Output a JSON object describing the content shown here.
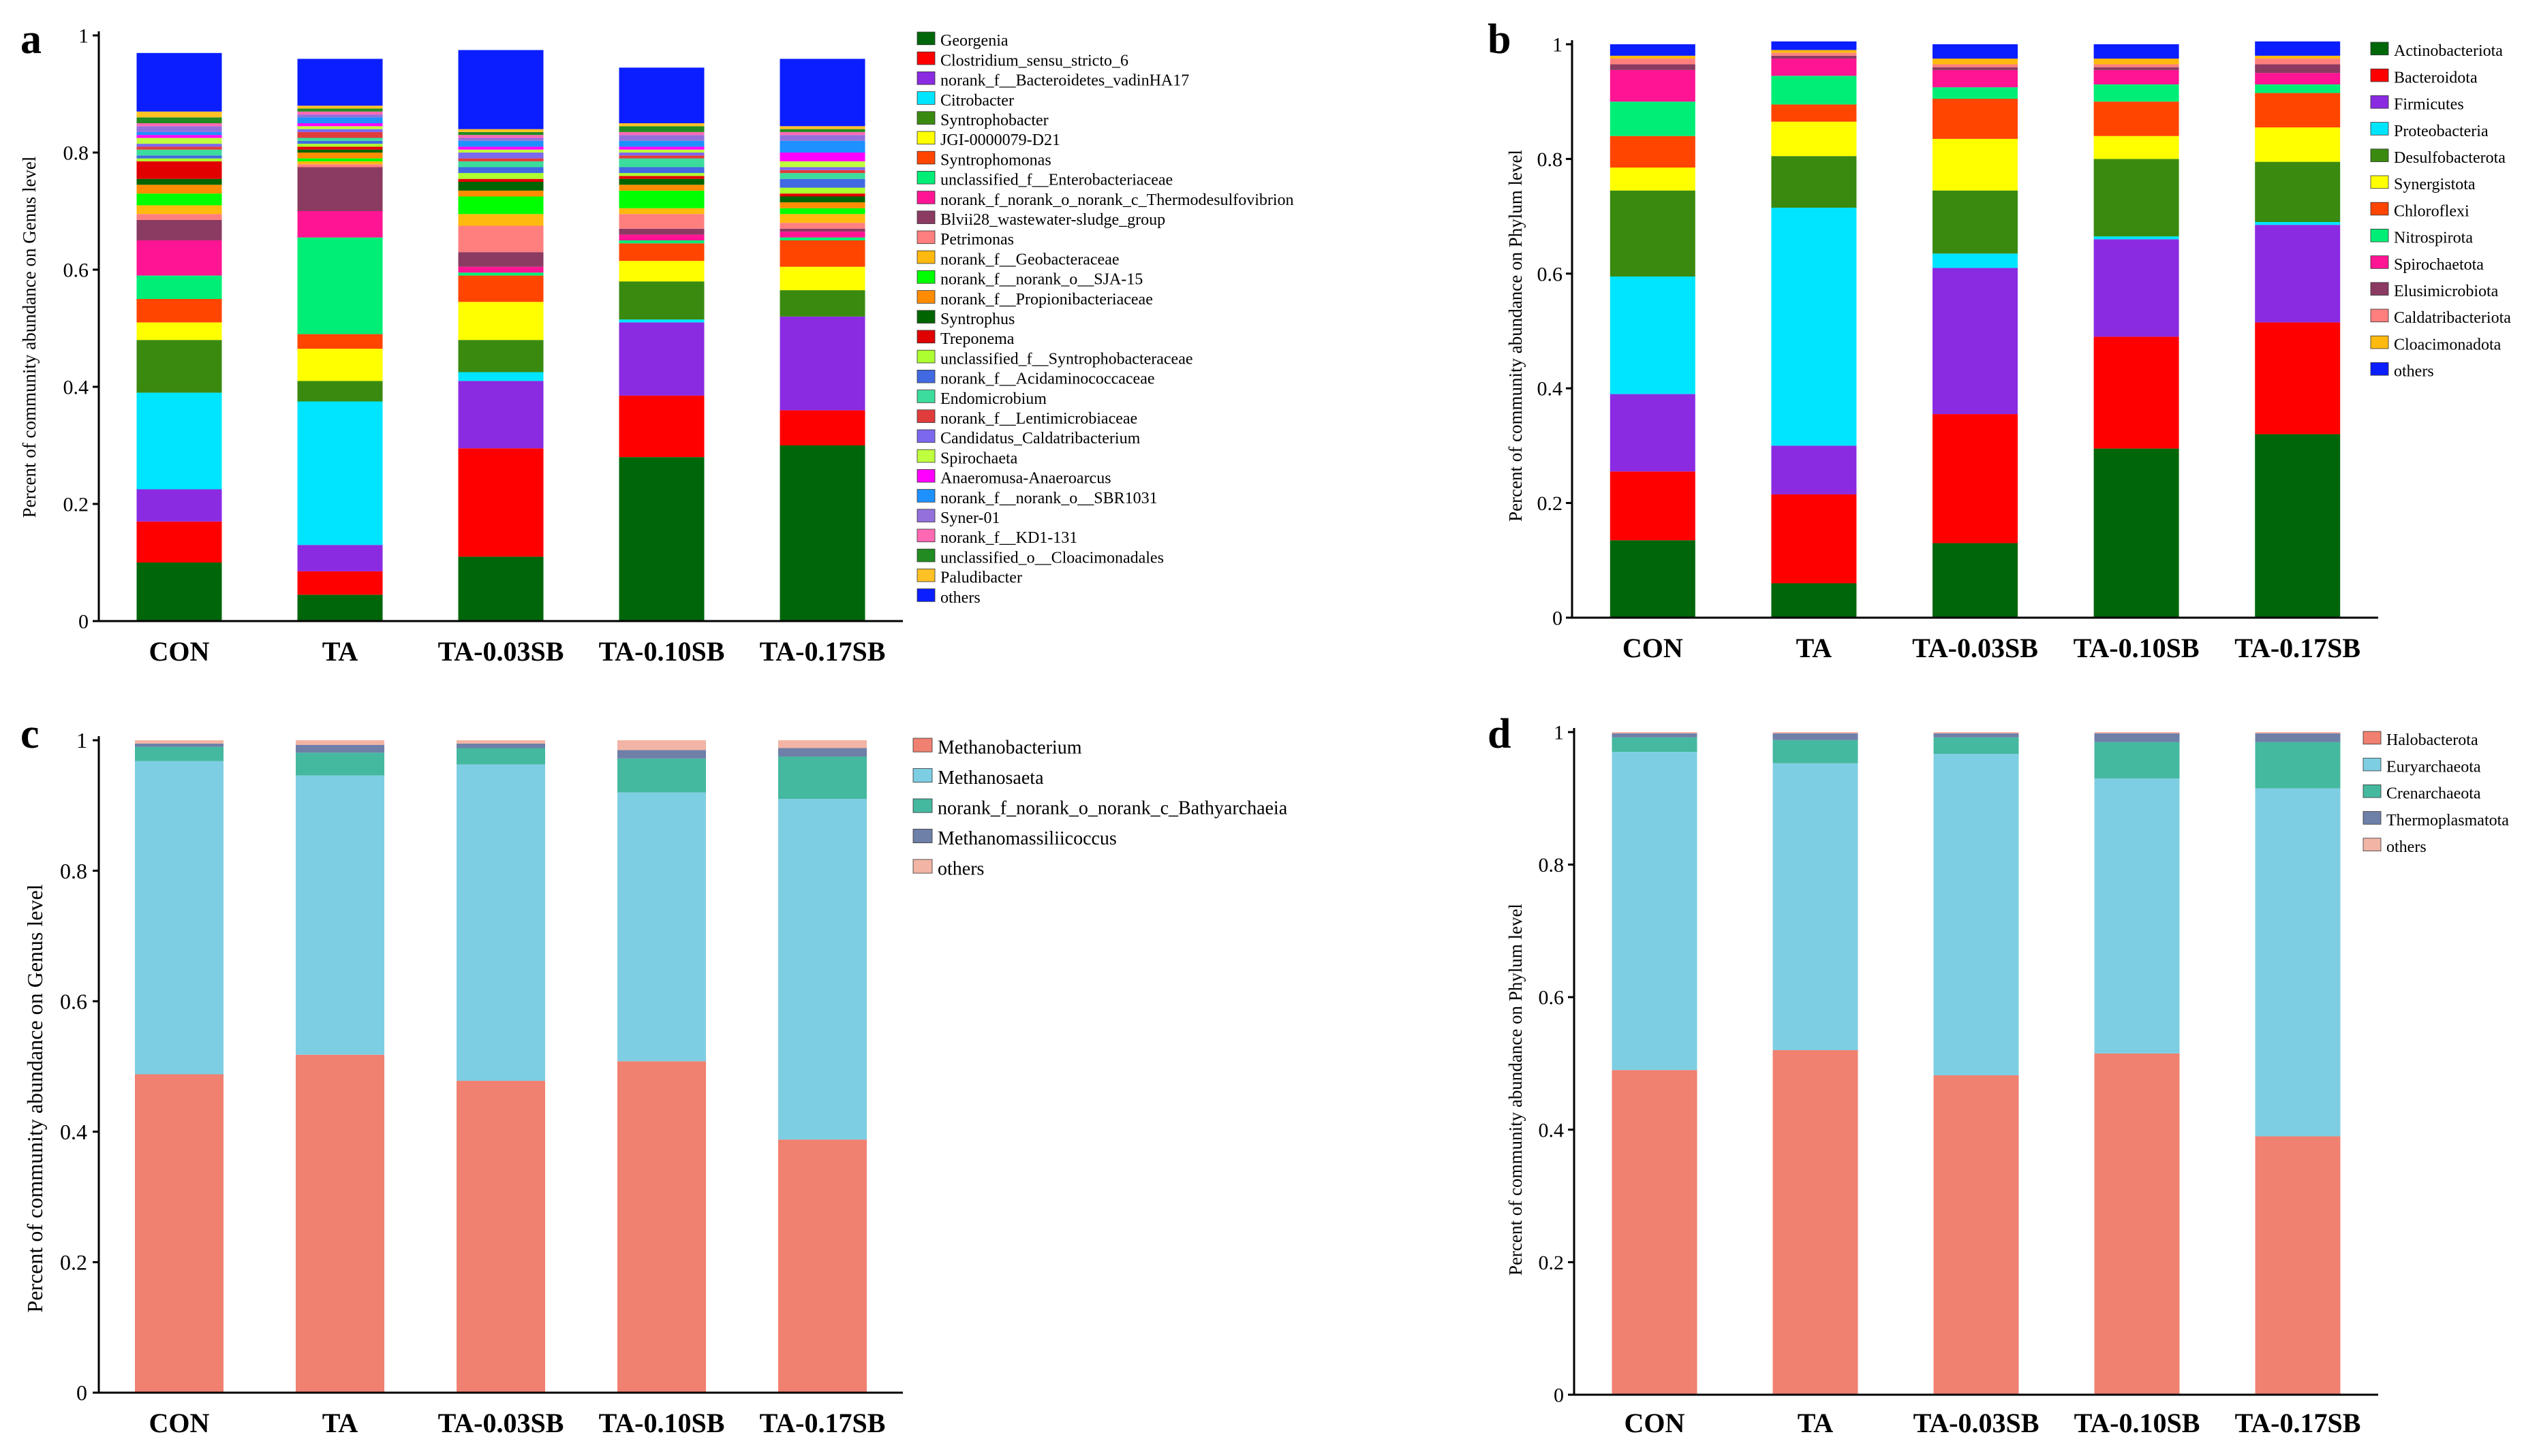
{
  "chart_data": [
    {
      "panel": "a",
      "type": "bar",
      "stacked": true,
      "title": "",
      "xlabel": "",
      "ylabel": "Percent of community abundance on Genus level",
      "ylim": [
        0,
        1
      ],
      "yticks": [
        "0",
        "0.2",
        "0.4",
        "0.6",
        "0.8",
        "1"
      ],
      "categories": [
        "CON",
        "TA",
        "TA-0.03SB",
        "TA-0.10SB",
        "TA-0.17SB"
      ],
      "series": [
        {
          "name": "Georgenia",
          "color": "#00660a",
          "values": [
            0.1,
            0.045,
            0.11,
            0.28,
            0.3
          ]
        },
        {
          "name": "Clostridium_sensu_stricto_6",
          "color": "#ff0000",
          "values": [
            0.07,
            0.04,
            0.185,
            0.105,
            0.06
          ]
        },
        {
          "name": "norank_f__Bacteroidetes_vadinHA17",
          "color": "#8a2be2",
          "values": [
            0.055,
            0.045,
            0.115,
            0.125,
            0.16
          ]
        },
        {
          "name": "Citrobacter",
          "color": "#00e5ff",
          "values": [
            0.165,
            0.245,
            0.015,
            0.005,
            0.0
          ]
        },
        {
          "name": "Syntrophobacter",
          "color": "#3a8a10",
          "values": [
            0.09,
            0.035,
            0.055,
            0.065,
            0.045
          ]
        },
        {
          "name": "JGI-0000079-D21",
          "color": "#ffff00",
          "values": [
            0.03,
            0.055,
            0.065,
            0.035,
            0.04
          ]
        },
        {
          "name": "Syntrophomonas",
          "color": "#ff4500",
          "values": [
            0.04,
            0.025,
            0.045,
            0.03,
            0.045
          ]
        },
        {
          "name": "unclassified_f__Enterobacteriaceae",
          "color": "#00ee76",
          "values": [
            0.04,
            0.165,
            0.005,
            0.005,
            0.005
          ]
        },
        {
          "name": "norank_f_norank_o_norank_c_Thermodesulfovibrion",
          "color": "#ff1493",
          "values": [
            0.06,
            0.045,
            0.01,
            0.01,
            0.01
          ]
        },
        {
          "name": "Blvii28_wastewater-sludge_group",
          "color": "#8b3a62",
          "values": [
            0.035,
            0.075,
            0.025,
            0.01,
            0.005
          ]
        },
        {
          "name": "Petrimonas",
          "color": "#ff7f7f",
          "values": [
            0.01,
            0.005,
            0.045,
            0.025,
            0.01
          ]
        },
        {
          "name": "norank_f__Geobacteraceae",
          "color": "#ffb90f",
          "values": [
            0.015,
            0.005,
            0.02,
            0.01,
            0.015
          ]
        },
        {
          "name": "norank_f__norank_o__SJA-15",
          "color": "#00ff00",
          "values": [
            0.02,
            0.005,
            0.03,
            0.03,
            0.01
          ]
        },
        {
          "name": "norank_f__Propionibacteriaceae",
          "color": "#ff8c00",
          "values": [
            0.015,
            0.01,
            0.01,
            0.01,
            0.01
          ]
        },
        {
          "name": "Syntrophus",
          "color": "#006400",
          "values": [
            0.01,
            0.005,
            0.015,
            0.01,
            0.01
          ]
        },
        {
          "name": "Treponema",
          "color": "#e00000",
          "values": [
            0.03,
            0.005,
            0.005,
            0.005,
            0.005
          ]
        },
        {
          "name": "unclassified_f__Syntrophobacteraceae",
          "color": "#adff2f",
          "values": [
            0.005,
            0.005,
            0.01,
            0.005,
            0.01
          ]
        },
        {
          "name": "norank_f__Acidaminococcaceae",
          "color": "#4169e1",
          "values": [
            0.005,
            0.005,
            0.01,
            0.01,
            0.015
          ]
        },
        {
          "name": "Endomicrobium",
          "color": "#3cdc9c",
          "values": [
            0.01,
            0.005,
            0.01,
            0.015,
            0.01
          ]
        },
        {
          "name": "norank_f__Lentimicrobiaceae",
          "color": "#e03c3c",
          "values": [
            0.005,
            0.01,
            0.005,
            0.005,
            0.005
          ]
        },
        {
          "name": "Candidatus_Caldatribacterium",
          "color": "#7b68ee",
          "values": [
            0.005,
            0.005,
            0.01,
            0.005,
            0.005
          ]
        },
        {
          "name": "Spirochaeta",
          "color": "#c0ff3e",
          "values": [
            0.01,
            0.005,
            0.005,
            0.005,
            0.01
          ]
        },
        {
          "name": "Anaeromusa-Anaeroarcus",
          "color": "#ff00ff",
          "values": [
            0.005,
            0.005,
            0.005,
            0.005,
            0.015
          ]
        },
        {
          "name": "norank_f__norank_o__SBR1031",
          "color": "#1e90ff",
          "values": [
            0.005,
            0.01,
            0.01,
            0.01,
            0.02
          ]
        },
        {
          "name": "Syner-01",
          "color": "#9370db",
          "values": [
            0.01,
            0.005,
            0.005,
            0.01,
            0.01
          ]
        },
        {
          "name": "norank_f__KD1-131",
          "color": "#ff69b4",
          "values": [
            0.005,
            0.005,
            0.005,
            0.005,
            0.005
          ]
        },
        {
          "name": "unclassified_o__Cloacimonadales",
          "color": "#228b22",
          "values": [
            0.01,
            0.005,
            0.005,
            0.01,
            0.005
          ]
        },
        {
          "name": "Paludibacter",
          "color": "#ffc125",
          "values": [
            0.01,
            0.005,
            0.005,
            0.005,
            0.005
          ]
        },
        {
          "name": "others",
          "color": "#0a1eff",
          "values": [
            0.1,
            0.08,
            0.135,
            0.095,
            0.115
          ]
        }
      ]
    },
    {
      "panel": "b",
      "type": "bar",
      "stacked": true,
      "title": "",
      "xlabel": "",
      "ylabel": "Percent of community abundance on Phylum level",
      "ylim": [
        0,
        1
      ],
      "yticks": [
        "0",
        "0.2",
        "0.4",
        "0.6",
        "0.8",
        "1"
      ],
      "categories": [
        "CON",
        "TA",
        "TA-0.03SB",
        "TA-0.10SB",
        "TA-0.17SB"
      ],
      "series": [
        {
          "name": "Actinobacteriota",
          "color": "#00660a",
          "values": [
            0.135,
            0.06,
            0.13,
            0.295,
            0.32
          ]
        },
        {
          "name": "Bacteroidota",
          "color": "#ff0000",
          "values": [
            0.12,
            0.155,
            0.225,
            0.195,
            0.195
          ]
        },
        {
          "name": "Firmicutes",
          "color": "#8a2be2",
          "values": [
            0.135,
            0.085,
            0.255,
            0.17,
            0.17
          ]
        },
        {
          "name": "Proteobacteria",
          "color": "#00e5ff",
          "values": [
            0.205,
            0.415,
            0.025,
            0.005,
            0.005
          ]
        },
        {
          "name": "Desulfobacterota",
          "color": "#3a8a10",
          "values": [
            0.15,
            0.09,
            0.11,
            0.135,
            0.105
          ]
        },
        {
          "name": "Synergistota",
          "color": "#ffff00",
          "values": [
            0.04,
            0.06,
            0.09,
            0.04,
            0.06
          ]
        },
        {
          "name": "Chloroflexi",
          "color": "#ff4500",
          "values": [
            0.055,
            0.03,
            0.07,
            0.06,
            0.06
          ]
        },
        {
          "name": "Nitrospirota",
          "color": "#00ee76",
          "values": [
            0.06,
            0.05,
            0.02,
            0.03,
            0.015
          ]
        },
        {
          "name": "Spirochaetota",
          "color": "#ff1493",
          "values": [
            0.055,
            0.03,
            0.03,
            0.025,
            0.02
          ]
        },
        {
          "name": "Elusimicrobiota",
          "color": "#8b3a62",
          "values": [
            0.01,
            0.005,
            0.005,
            0.005,
            0.015
          ]
        },
        {
          "name": "Caldatribacteriota",
          "color": "#ff7f7f",
          "values": [
            0.01,
            0.005,
            0.005,
            0.005,
            0.01
          ]
        },
        {
          "name": "Cloacimonadota",
          "color": "#ffb90f",
          "values": [
            0.005,
            0.005,
            0.01,
            0.01,
            0.005
          ]
        },
        {
          "name": "others",
          "color": "#0a1eff",
          "values": [
            0.02,
            0.015,
            0.025,
            0.025,
            0.025
          ]
        }
      ]
    },
    {
      "panel": "c",
      "type": "bar",
      "stacked": true,
      "title": "",
      "xlabel": "",
      "ylabel": "Percent of community abundance on Genus level",
      "ylim": [
        0,
        1
      ],
      "yticks": [
        "0",
        "0.2",
        "0.4",
        "0.6",
        "0.8",
        "1"
      ],
      "categories": [
        "CON",
        "TA",
        "TA-0.03SB",
        "TA-0.10SB",
        "TA-0.17SB"
      ],
      "series": [
        {
          "name": "Methanobacterium",
          "color": "#f08070",
          "values": [
            0.488,
            0.518,
            0.478,
            0.508,
            0.388
          ]
        },
        {
          "name": "Methanosaeta",
          "color": "#7ecee3",
          "values": [
            0.48,
            0.428,
            0.485,
            0.412,
            0.522
          ]
        },
        {
          "name": "norank_f_norank_o_norank_c_Bathyarchaeia",
          "color": "#45b8a0",
          "values": [
            0.022,
            0.035,
            0.025,
            0.052,
            0.065
          ]
        },
        {
          "name": "Methanomassiliicoccus",
          "color": "#6e7fa8",
          "values": [
            0.005,
            0.012,
            0.007,
            0.013,
            0.013
          ]
        },
        {
          "name": "others",
          "color": "#f2b4a4",
          "values": [
            0.005,
            0.007,
            0.005,
            0.015,
            0.012
          ]
        }
      ]
    },
    {
      "panel": "d",
      "type": "bar",
      "stacked": true,
      "title": "",
      "xlabel": "",
      "ylabel": "Percent of community abundance on Phylum level",
      "ylim": [
        0,
        1
      ],
      "yticks": [
        "0",
        "0.2",
        "0.4",
        "0.6",
        "0.8",
        "1"
      ],
      "categories": [
        "CON",
        "TA",
        "TA-0.03SB",
        "TA-0.10SB",
        "TA-0.17SB"
      ],
      "series": [
        {
          "name": "Halobacterota",
          "color": "#f08070",
          "values": [
            0.49,
            0.52,
            0.482,
            0.515,
            0.39
          ]
        },
        {
          "name": "Euryarchaeota",
          "color": "#7ecee3",
          "values": [
            0.48,
            0.433,
            0.485,
            0.415,
            0.525
          ]
        },
        {
          "name": "Crenarchaeota",
          "color": "#45b8a0",
          "values": [
            0.022,
            0.035,
            0.025,
            0.055,
            0.07
          ]
        },
        {
          "name": "Thermoplasmatota",
          "color": "#6e7fa8",
          "values": [
            0.006,
            0.01,
            0.006,
            0.013,
            0.013
          ]
        },
        {
          "name": "others",
          "color": "#f2b4a4",
          "values": [
            0.002,
            0.002,
            0.002,
            0.002,
            0.002
          ]
        }
      ]
    }
  ]
}
